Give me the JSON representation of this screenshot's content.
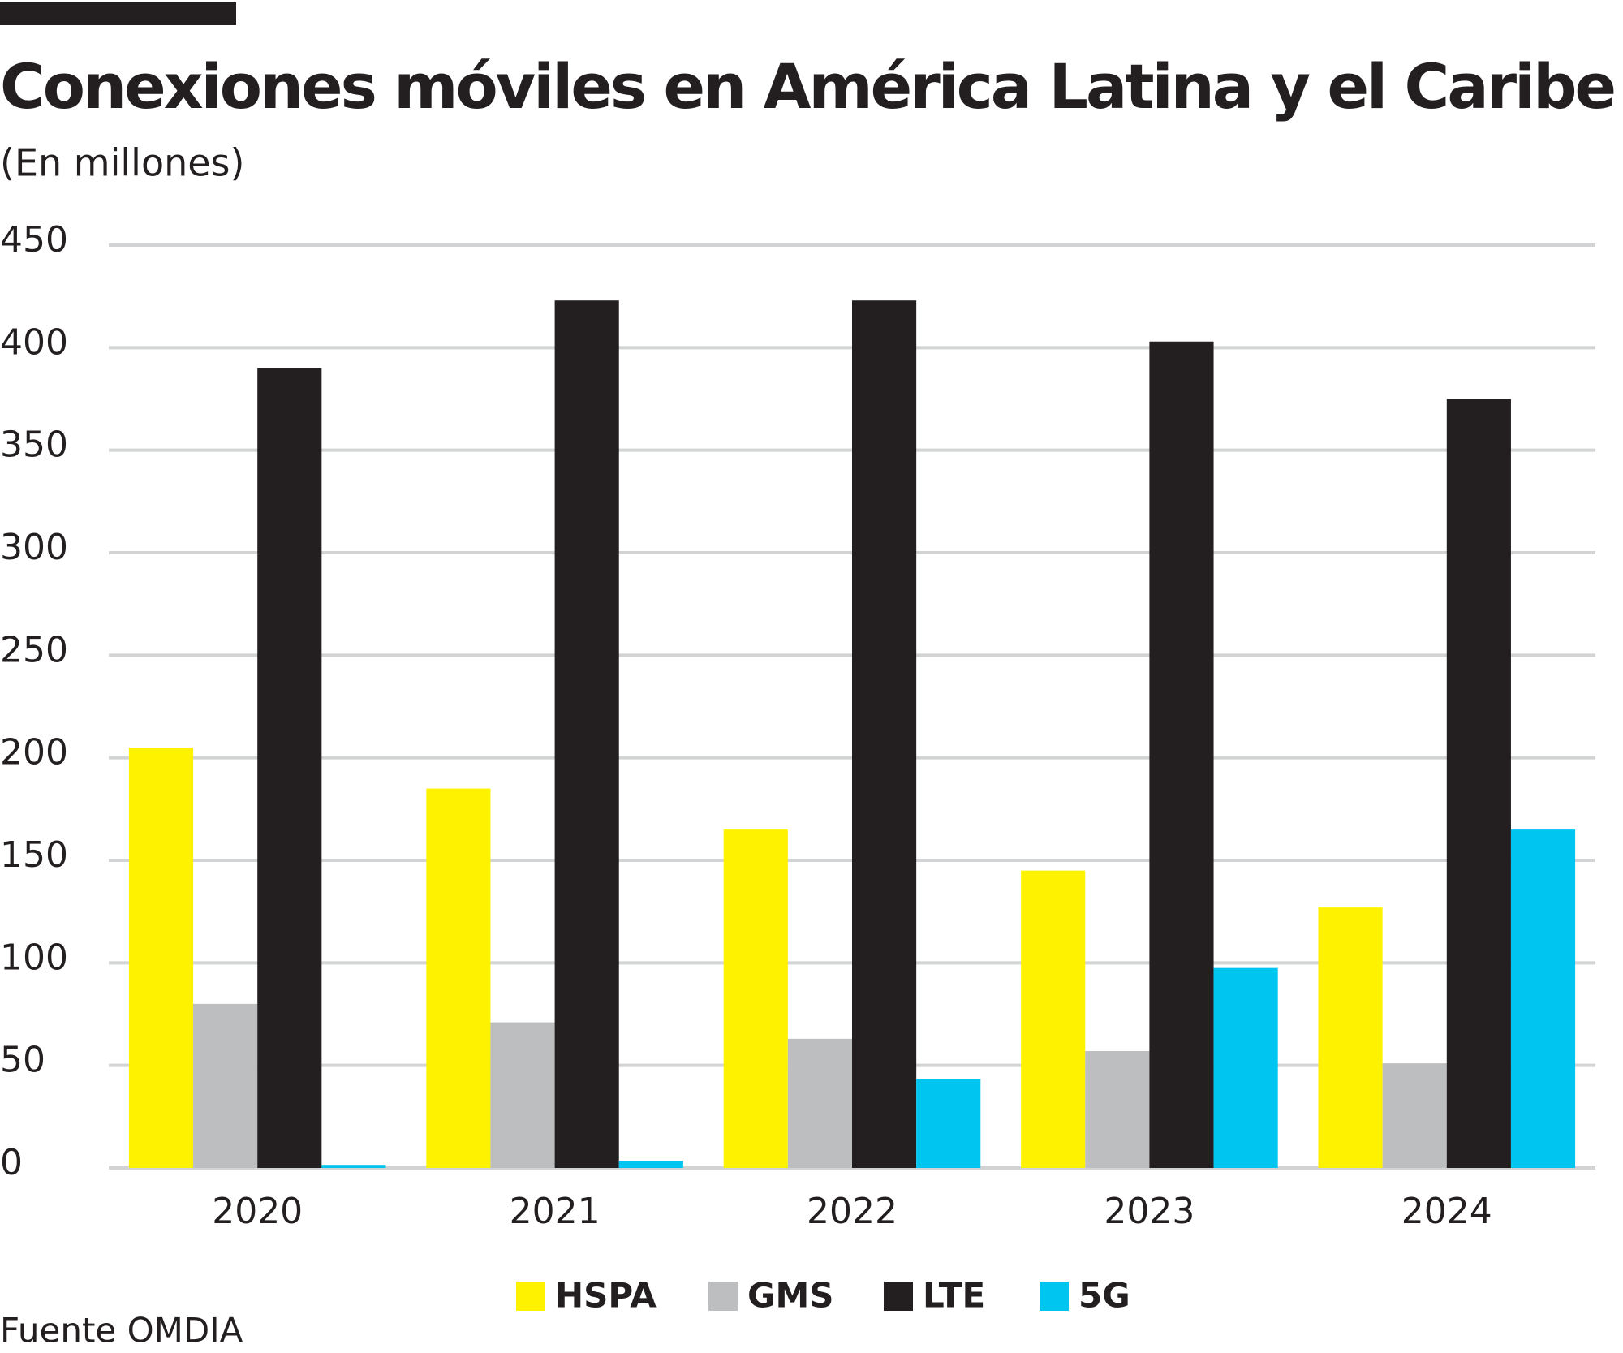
{
  "chart_data": {
    "type": "bar",
    "title": "Conexiones móviles en América Latina y el Caribe",
    "subtitle": "(En millones)",
    "source": "Fuente OMDIA",
    "categories": [
      "2020",
      "2021",
      "2022",
      "2023",
      "2024"
    ],
    "series": [
      {
        "name": "HSPA",
        "color": "#fff200",
        "values": [
          205,
          185,
          165,
          145,
          127
        ]
      },
      {
        "name": "GMS",
        "color": "#bcbec0",
        "values": [
          80,
          71,
          63,
          57,
          51
        ]
      },
      {
        "name": "LTE",
        "color": "#231f20",
        "values": [
          390,
          423,
          423,
          403,
          375
        ]
      },
      {
        "name": "5G",
        "color": "#00c5f0",
        "values": [
          1.5,
          3.5,
          43.5,
          97.5,
          165
        ]
      }
    ],
    "ylim": [
      0,
      450
    ],
    "yticks": [
      0,
      50,
      100,
      150,
      200,
      250,
      300,
      350,
      400,
      450
    ],
    "grid": true,
    "legend": "bottom"
  }
}
